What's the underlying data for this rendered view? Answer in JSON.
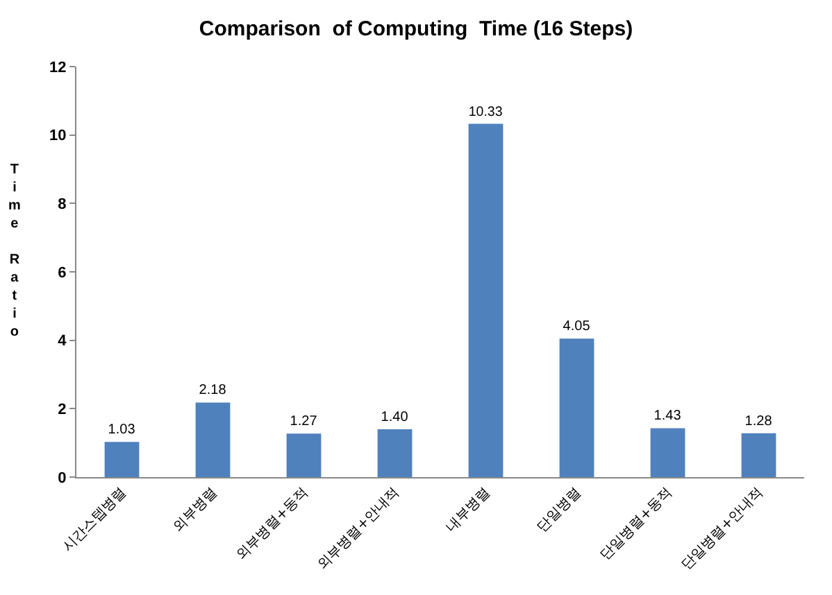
{
  "chart_data": {
    "type": "bar",
    "title": "Comparison  of Computing  Time (16 Steps)",
    "ylabel": "Time Ratio",
    "categories": [
      "시간스텝병렬",
      "외부병렬",
      "외부병렬+동적",
      "외부병렬+안내적",
      "내부병렬",
      "단일병렬",
      "단일병렬+동적",
      "단일병렬+안내적"
    ],
    "values": [
      1.03,
      2.18,
      1.27,
      1.4,
      10.33,
      4.05,
      1.43,
      1.28
    ],
    "value_labels": [
      "1.03",
      "2.18",
      "1.27",
      "1.40",
      "10.33",
      "4.05",
      "1.43",
      "1.28"
    ],
    "color": "#4f81bd",
    "ylim": [
      0,
      12
    ],
    "yticks": [
      0,
      2,
      4,
      6,
      8,
      10,
      12
    ],
    "grid": false
  }
}
